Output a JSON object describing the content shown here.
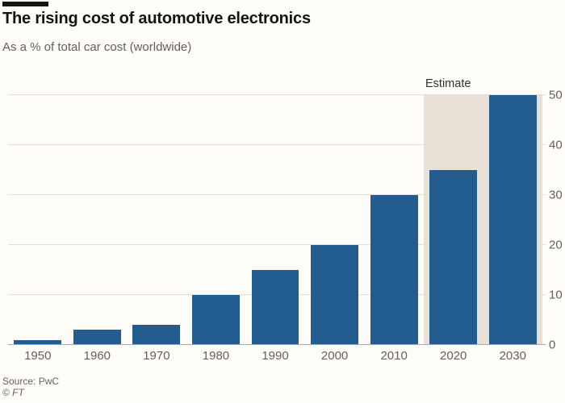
{
  "header": {
    "title": "The rising cost of automotive electronics",
    "subtitle": "As a % of total car cost (worldwide)"
  },
  "chart_data": {
    "type": "bar",
    "title": "The rising cost of automotive electronics",
    "subtitle": "As a % of total car cost (worldwide)",
    "categories": [
      "1950",
      "1960",
      "1970",
      "1980",
      "1990",
      "2000",
      "2010",
      "2020",
      "2030"
    ],
    "values": [
      1,
      3,
      4,
      10,
      15,
      20,
      30,
      35,
      50
    ],
    "xlabel": "",
    "ylabel": "",
    "ylim": [
      0,
      50
    ],
    "yticks": [
      0,
      10,
      20,
      30,
      40,
      50
    ],
    "y_axis_side": "right",
    "grid": "horizontal",
    "legend": "none",
    "annotation": {
      "label": "Estimate",
      "covers_categories": [
        "2020",
        "2030"
      ]
    },
    "colors": {
      "bar": "#235d8f",
      "estimate_band": "#e9e0d8",
      "gridline": "#e7ddd3",
      "axis_line": "#b1a99f",
      "tick_label": "#66605c",
      "title": "#161412"
    }
  },
  "footer": {
    "source": "Source: PwC",
    "copyright": "© FT"
  }
}
